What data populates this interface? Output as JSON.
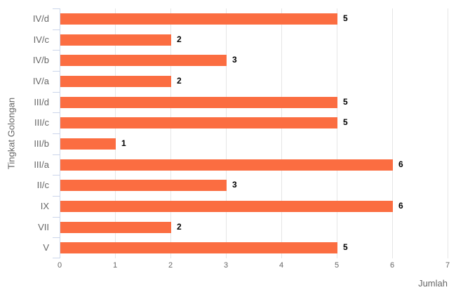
{
  "chart_data": {
    "type": "bar",
    "orientation": "horizontal",
    "title": "",
    "xlabel": "Jumlah",
    "ylabel": "Tingkat Golongan",
    "categories": [
      "IV/d",
      "IV/c",
      "IV/b",
      "IV/a",
      "III/d",
      "III/c",
      "III/b",
      "III/a",
      "II/c",
      "IX",
      "VII",
      "V"
    ],
    "values": [
      5,
      2,
      3,
      2,
      5,
      5,
      1,
      6,
      3,
      6,
      2,
      5
    ],
    "xlim": [
      0,
      7
    ],
    "xticks": [
      0,
      1,
      2,
      3,
      4,
      5,
      6,
      7
    ],
    "grid": true,
    "legend": false,
    "data_labels": true,
    "colors": {
      "bar": "#FB6D41",
      "data_label": "#000000",
      "axis_label": "#666666",
      "axis_line": "#CCD6EB",
      "gridline": "#E6E6E6",
      "background": "#FFFFFF"
    }
  }
}
